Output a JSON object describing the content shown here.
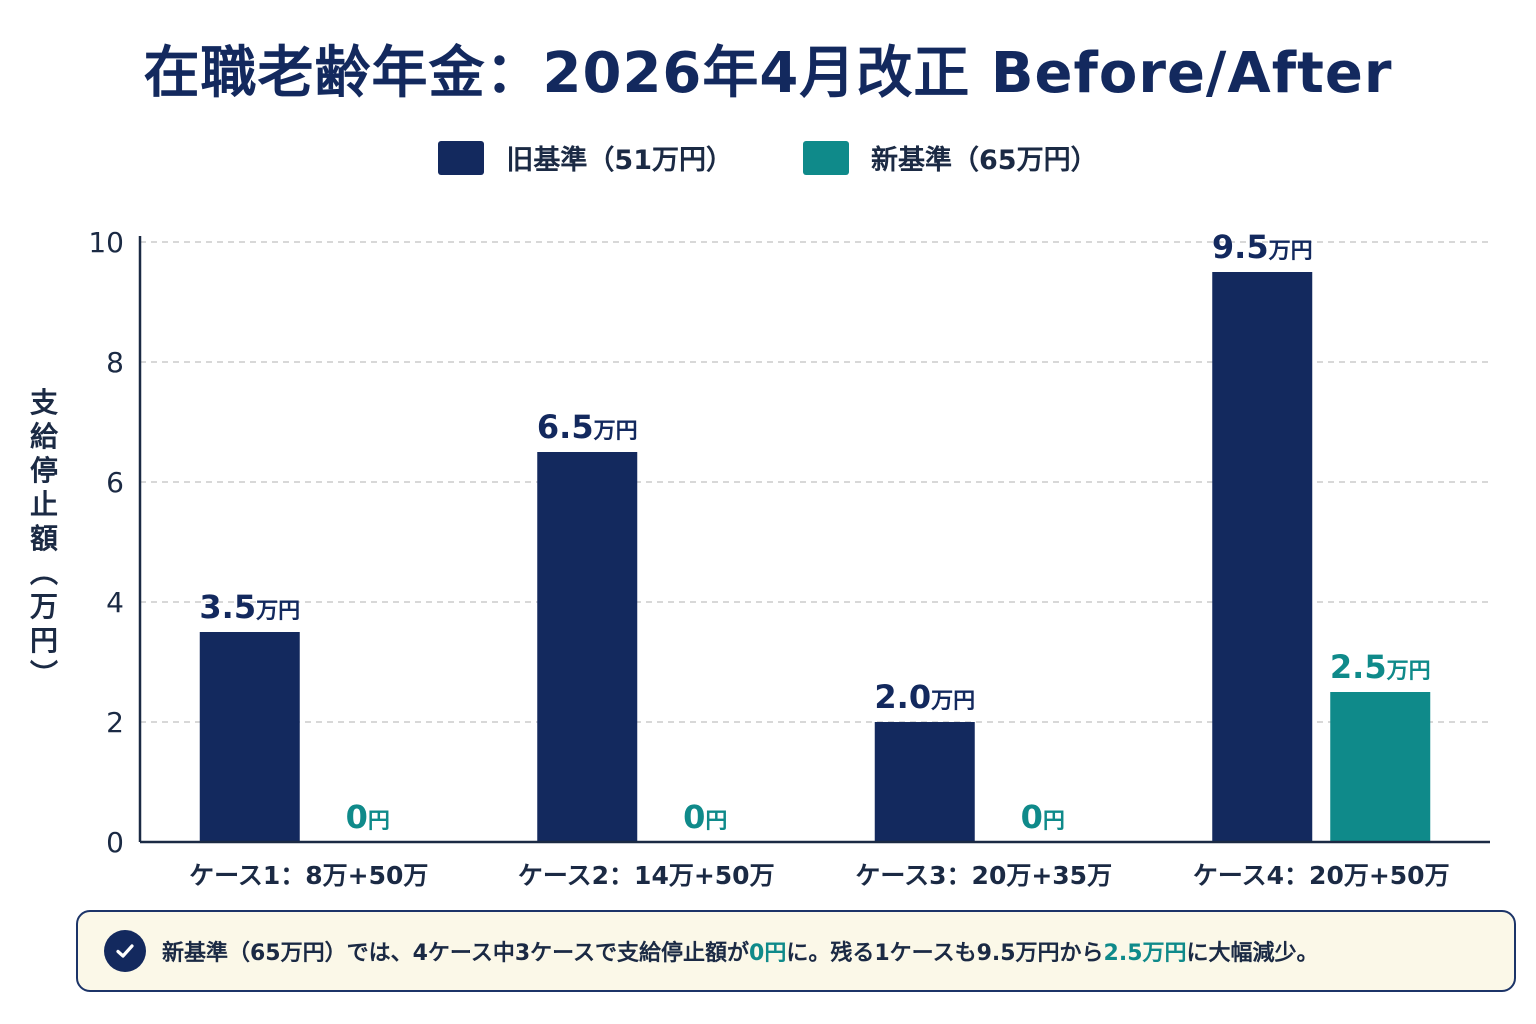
{
  "title": "在職老齢年金：2026年4月改正 Before/After",
  "colors": {
    "old": "#13295e",
    "new": "#0f8a8a",
    "axis": "#1b2a44",
    "grid": "#cccccc"
  },
  "note": {
    "icon": "check-circle-icon",
    "parts": [
      {
        "text": "新基準（65万円）では、4ケース中3ケースで支給停止額が",
        "teal": false
      },
      {
        "text": "0円",
        "teal": true
      },
      {
        "text": "に。残る1ケースも9.5万円から",
        "teal": false
      },
      {
        "text": "2.5万円",
        "teal": true
      },
      {
        "text": "に大幅減少。",
        "teal": false
      }
    ]
  },
  "chart_data": {
    "type": "bar",
    "title": "在職老齢年金：2026年4月改正 Before/After",
    "ylabel": "支給停止額（万円）",
    "xlabel": "",
    "ylim": [
      0,
      10
    ],
    "yticks": [
      0,
      2,
      4,
      6,
      8,
      10
    ],
    "grid": true,
    "legend_position": "top-center",
    "categories": [
      "ケース1：8万+50万",
      "ケース2：14万+50万",
      "ケース3：20万+35万",
      "ケース4：20万+50万"
    ],
    "series": [
      {
        "name": "旧基準（51万円）",
        "color": "#13295e",
        "values": [
          3.5,
          6.5,
          2.0,
          9.5
        ],
        "labels": [
          "3.5万円",
          "6.5万円",
          "2.0万円",
          "9.5万円"
        ]
      },
      {
        "name": "新基準（65万円）",
        "color": "#0f8a8a",
        "values": [
          0,
          0,
          0,
          2.5
        ],
        "labels": [
          "0円",
          "0円",
          "0円",
          "2.5万円"
        ]
      }
    ]
  }
}
